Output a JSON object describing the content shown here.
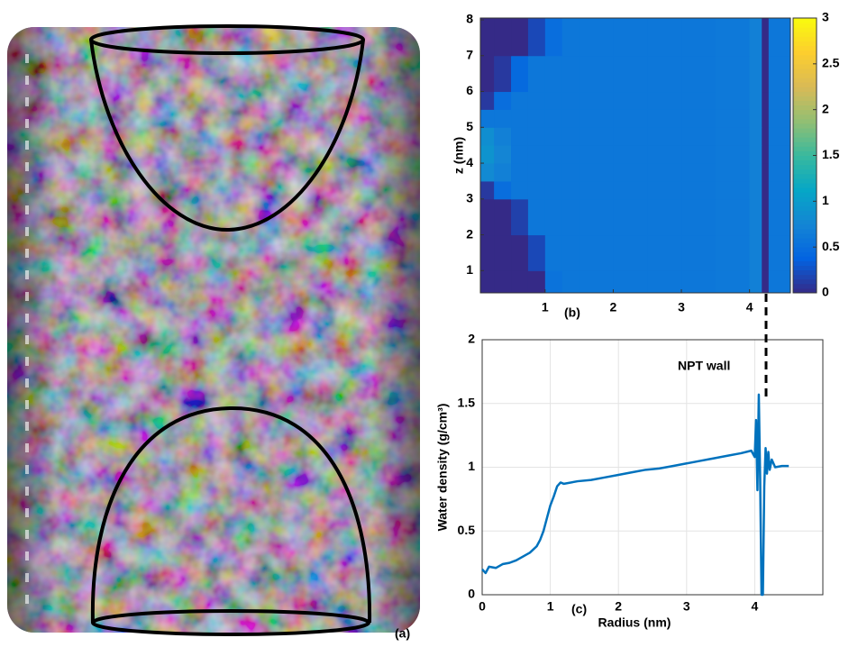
{
  "figure": {
    "panel_label": "(a)"
  },
  "chart_data": [
    {
      "type": "heatmap",
      "panel_label": "(b)",
      "ylabel": "z (nm)",
      "xlim": [
        0.05,
        4.6
      ],
      "xticks": [
        1,
        2,
        3,
        4
      ],
      "ylim": [
        0.38,
        8.05
      ],
      "yticks": [
        1,
        2,
        3,
        4,
        5,
        6,
        7,
        8
      ],
      "xbins": [
        0.05,
        0.25,
        0.5,
        0.75,
        1,
        1.25,
        1.5,
        2,
        2.5,
        3,
        3.5,
        4,
        4.18,
        4.28,
        4.6
      ],
      "ybins": [
        0.38,
        1,
        2,
        3,
        3.5,
        4,
        4.5,
        5,
        5.5,
        6,
        7,
        8.05
      ],
      "values": [
        [
          0,
          0,
          0,
          0,
          0.55,
          0.6,
          0.6,
          0.6,
          0.6,
          0.6,
          0.62,
          0.7,
          0,
          0.6
        ],
        [
          0,
          0,
          0,
          0.2,
          0.6,
          0.6,
          0.6,
          0.6,
          0.6,
          0.6,
          0.62,
          0.7,
          0,
          0.6
        ],
        [
          0,
          0,
          0.15,
          0.6,
          0.6,
          0.6,
          0.6,
          0.6,
          0.6,
          0.6,
          0.62,
          0.7,
          0,
          0.6
        ],
        [
          0.1,
          0.5,
          0.6,
          0.6,
          0.6,
          0.6,
          0.6,
          0.6,
          0.6,
          0.6,
          0.62,
          0.7,
          0,
          0.6
        ],
        [
          0.8,
          0.7,
          0.6,
          0.6,
          0.6,
          0.6,
          0.6,
          0.6,
          0.6,
          0.6,
          0.62,
          0.7,
          0,
          0.6
        ],
        [
          0.9,
          0.75,
          0.6,
          0.6,
          0.6,
          0.6,
          0.6,
          0.6,
          0.6,
          0.6,
          0.62,
          0.7,
          0,
          0.6
        ],
        [
          0.85,
          0.7,
          0.6,
          0.6,
          0.6,
          0.6,
          0.6,
          0.6,
          0.6,
          0.6,
          0.62,
          0.7,
          0,
          0.6
        ],
        [
          0.6,
          0.6,
          0.6,
          0.6,
          0.6,
          0.6,
          0.6,
          0.6,
          0.6,
          0.6,
          0.62,
          0.7,
          0,
          0.6
        ],
        [
          0.1,
          0.5,
          0.6,
          0.6,
          0.6,
          0.6,
          0.6,
          0.6,
          0.6,
          0.6,
          0.62,
          0.7,
          0,
          0.6
        ],
        [
          0,
          0.1,
          0.45,
          0.6,
          0.6,
          0.6,
          0.6,
          0.6,
          0.6,
          0.6,
          0.62,
          0.7,
          0,
          0.6
        ],
        [
          0,
          0,
          0,
          0.2,
          0.5,
          0.6,
          0.6,
          0.6,
          0.6,
          0.6,
          0.62,
          0.7,
          0,
          0.6
        ]
      ],
      "clim": [
        0,
        3
      ],
      "cticks": [
        0,
        0.5,
        1,
        1.5,
        2,
        2.5,
        3
      ],
      "colormap": [
        "#352a87",
        "#0363e1",
        "#1485d4",
        "#06a7c6",
        "#38b99e",
        "#92bf73",
        "#d9ba56",
        "#fcce2e",
        "#f9fb0e"
      ]
    },
    {
      "type": "line",
      "panel_label": "(c)",
      "xlabel": "Radius (nm)",
      "ylabel": "Water density (g/cm³)",
      "annotation": "NPT wall",
      "grid": true,
      "xlim": [
        0,
        5
      ],
      "xticks": [
        0,
        1,
        2,
        3,
        4
      ],
      "ylim": [
        0,
        2
      ],
      "yticks": [
        0,
        0.5,
        1,
        1.5,
        2
      ],
      "x": [
        0,
        0.05,
        0.1,
        0.2,
        0.3,
        0.4,
        0.5,
        0.6,
        0.7,
        0.8,
        0.85,
        0.9,
        0.95,
        1.0,
        1.05,
        1.1,
        1.15,
        1.2,
        1.4,
        1.6,
        1.8,
        2.0,
        2.2,
        2.4,
        2.6,
        2.8,
        3.0,
        3.2,
        3.4,
        3.6,
        3.8,
        3.95,
        4.0,
        4.02,
        4.04,
        4.06,
        4.08,
        4.1,
        4.12,
        4.14,
        4.16,
        4.18,
        4.2,
        4.22,
        4.25,
        4.3,
        4.4,
        4.5
      ],
      "series": [
        {
          "color": "#0072bd",
          "values": [
            0.2,
            0.17,
            0.22,
            0.21,
            0.24,
            0.25,
            0.27,
            0.3,
            0.33,
            0.38,
            0.43,
            0.5,
            0.6,
            0.7,
            0.77,
            0.85,
            0.88,
            0.87,
            0.89,
            0.9,
            0.92,
            0.94,
            0.96,
            0.98,
            0.99,
            1.01,
            1.03,
            1.05,
            1.07,
            1.09,
            1.11,
            1.13,
            1.08,
            1.37,
            0.82,
            1.57,
            0.9,
            0.0,
            0.0,
            0.85,
            1.15,
            0.95,
            1.12,
            0.98,
            1.06,
            1.0,
            1.01,
            1.01
          ]
        }
      ]
    }
  ]
}
